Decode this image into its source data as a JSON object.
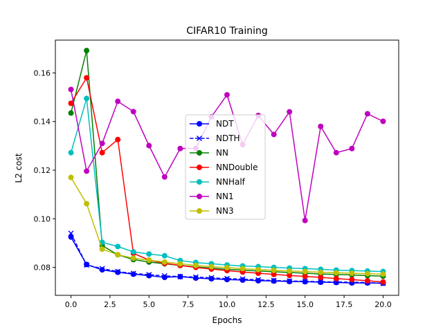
{
  "chart_data": {
    "type": "line",
    "title": "CIFAR10 Training",
    "xlabel": "Epochs",
    "ylabel": "L2 cost",
    "xlim": [
      -1.0,
      21.0
    ],
    "ylim": [
      0.0685,
      0.1735
    ],
    "xticks": [
      0.0,
      2.5,
      5.0,
      7.5,
      10.0,
      12.5,
      15.0,
      17.5,
      20.0
    ],
    "xtick_labels": [
      "0.0",
      "2.5",
      "5.0",
      "7.5",
      "10.0",
      "12.5",
      "15.0",
      "17.5",
      "20.0"
    ],
    "yticks": [
      0.08,
      0.1,
      0.12,
      0.14,
      0.16
    ],
    "ytick_labels": [
      "0.08",
      "0.10",
      "0.12",
      "0.14",
      "0.16"
    ],
    "grid": false,
    "legend_position": "center",
    "x": [
      0,
      1,
      2,
      3,
      4,
      5,
      6,
      7,
      8,
      9,
      10,
      11,
      12,
      13,
      14,
      15,
      16,
      17,
      18,
      19,
      20
    ],
    "series": [
      {
        "name": "NDT",
        "color": "#0000ff",
        "marker": "circle",
        "linestyle": "solid",
        "values": [
          0.0925,
          0.0812,
          0.079,
          0.078,
          0.0772,
          0.0766,
          0.0759,
          0.0762,
          0.0756,
          0.0753,
          0.075,
          0.0748,
          0.0745,
          0.0744,
          0.0742,
          0.0741,
          0.0739,
          0.0738,
          0.0736,
          0.0736,
          0.0735
        ]
      },
      {
        "name": "NDTH",
        "color": "#0000ff",
        "marker": "x",
        "linestyle": "dashed",
        "values": [
          0.094,
          0.081,
          0.0795,
          0.0783,
          0.0775,
          0.077,
          0.0765,
          0.0762,
          0.076,
          0.0757,
          0.0754,
          0.0752,
          0.0749,
          0.0746,
          0.0744,
          0.0743,
          0.0741,
          0.074,
          0.0739,
          0.0738,
          0.0734
        ]
      },
      {
        "name": "NN",
        "color": "#008000",
        "marker": "circle",
        "linestyle": "solid",
        "values": [
          0.1435,
          0.1692,
          0.089,
          0.0852,
          0.0832,
          0.0822,
          0.0815,
          0.0808,
          0.0802,
          0.0797,
          0.0792,
          0.0789,
          0.0785,
          0.0782,
          0.0779,
          0.0776,
          0.0773,
          0.0771,
          0.0769,
          0.0766,
          0.0764
        ]
      },
      {
        "name": "NNDouble",
        "color": "#ff0000",
        "marker": "circle",
        "linestyle": "solid",
        "values": [
          0.1475,
          0.158,
          0.1272,
          0.1326,
          0.0858,
          0.083,
          0.0817,
          0.0808,
          0.08,
          0.0793,
          0.0787,
          0.0781,
          0.0776,
          0.0771,
          0.0767,
          0.0763,
          0.0759,
          0.0754,
          0.075,
          0.0745,
          0.074
        ]
      },
      {
        "name": "NNHalf",
        "color": "#00bfbf",
        "marker": "circle",
        "linestyle": "solid",
        "values": [
          0.1272,
          0.1495,
          0.0903,
          0.0886,
          0.0864,
          0.0855,
          0.0848,
          0.0828,
          0.082,
          0.0815,
          0.081,
          0.0806,
          0.0803,
          0.08,
          0.0797,
          0.0795,
          0.0792,
          0.0789,
          0.0787,
          0.0785,
          0.0783
        ]
      },
      {
        "name": "NN1",
        "color": "#bf00bf",
        "marker": "circle",
        "linestyle": "solid",
        "values": [
          0.1532,
          0.1196,
          0.131,
          0.1483,
          0.1441,
          0.1301,
          0.1172,
          0.1289,
          0.129,
          0.142,
          0.151,
          0.1305,
          0.1425,
          0.1347,
          0.144,
          0.0993,
          0.138,
          0.1272,
          0.1289,
          0.1432,
          0.1401
        ]
      },
      {
        "name": "NN3",
        "color": "#bfbf00",
        "marker": "circle",
        "linestyle": "solid",
        "values": [
          0.117,
          0.1062,
          0.0875,
          0.0852,
          0.0838,
          0.083,
          0.0822,
          0.0815,
          0.0808,
          0.0803,
          0.0799,
          0.0795,
          0.0791,
          0.0788,
          0.0785,
          0.0783,
          0.078,
          0.0778,
          0.0776,
          0.0774,
          0.0772
        ]
      }
    ]
  }
}
